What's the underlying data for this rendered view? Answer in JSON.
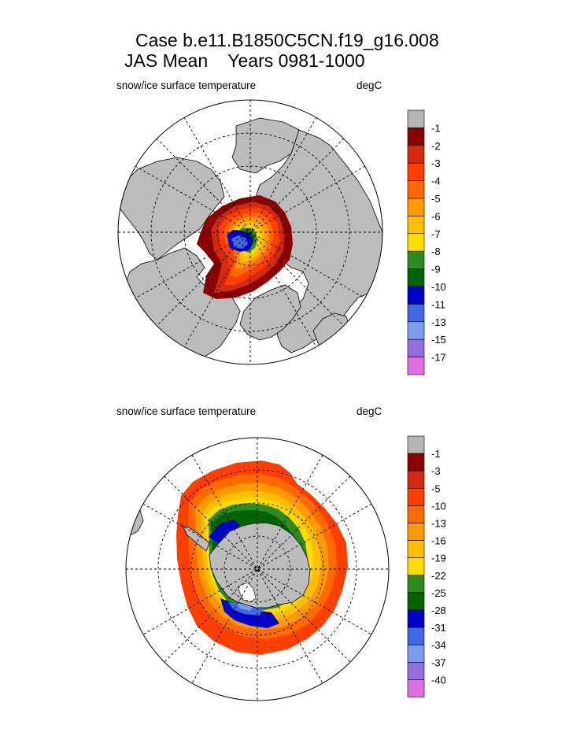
{
  "header": {
    "title_line1": "Case b.e11.B1850C5CN.f19_g16.008",
    "title_line2": "JAS Mean    Years 0981-1000"
  },
  "colors": {
    "land": "#bcbcbc",
    "ocean": "#ffffff",
    "legend_palette": [
      "#b4b4b4",
      "#8b0000",
      "#d42a0f",
      "#ff3f00",
      "#ff6a00",
      "#ff9900",
      "#ffbf00",
      "#ffdd00",
      "#2e8b22",
      "#006400",
      "#0000c8",
      "#4169e1",
      "#7b9cf0",
      "#9370db",
      "#e070e0"
    ]
  },
  "chart_data": [
    {
      "type": "heatmap",
      "projection": "north-polar-stereographic",
      "title": "snow/ice surface temperature",
      "units": "degC",
      "legend_placement": "right",
      "colorbar_labels": [
        "-1",
        "-2",
        "-3",
        "-4",
        "-5",
        "-6",
        "-7",
        "-8",
        "-9",
        "-10",
        "-11",
        "-13",
        "-15",
        "-17"
      ],
      "colorbar_levels": [
        -1,
        -2,
        -3,
        -4,
        -5,
        -6,
        -7,
        -8,
        -9,
        -10,
        -11,
        -13,
        -15,
        -17
      ],
      "field_range_shown": [
        -13,
        -1
      ],
      "grid": true
    },
    {
      "type": "heatmap",
      "projection": "south-polar-stereographic",
      "title": "snow/ice surface temperature",
      "units": "degC",
      "legend_placement": "right",
      "colorbar_labels": [
        "-1",
        "-3",
        "-5",
        "-10",
        "-13",
        "-16",
        "-19",
        "-22",
        "-25",
        "-28",
        "-31",
        "-34",
        "-37",
        "-40"
      ],
      "colorbar_levels": [
        -1,
        -3,
        -5,
        -10,
        -13,
        -16,
        -19,
        -22,
        -25,
        -28,
        -31,
        -34,
        -37,
        -40
      ],
      "field_range_shown": [
        -34,
        -1
      ],
      "grid": true
    }
  ]
}
